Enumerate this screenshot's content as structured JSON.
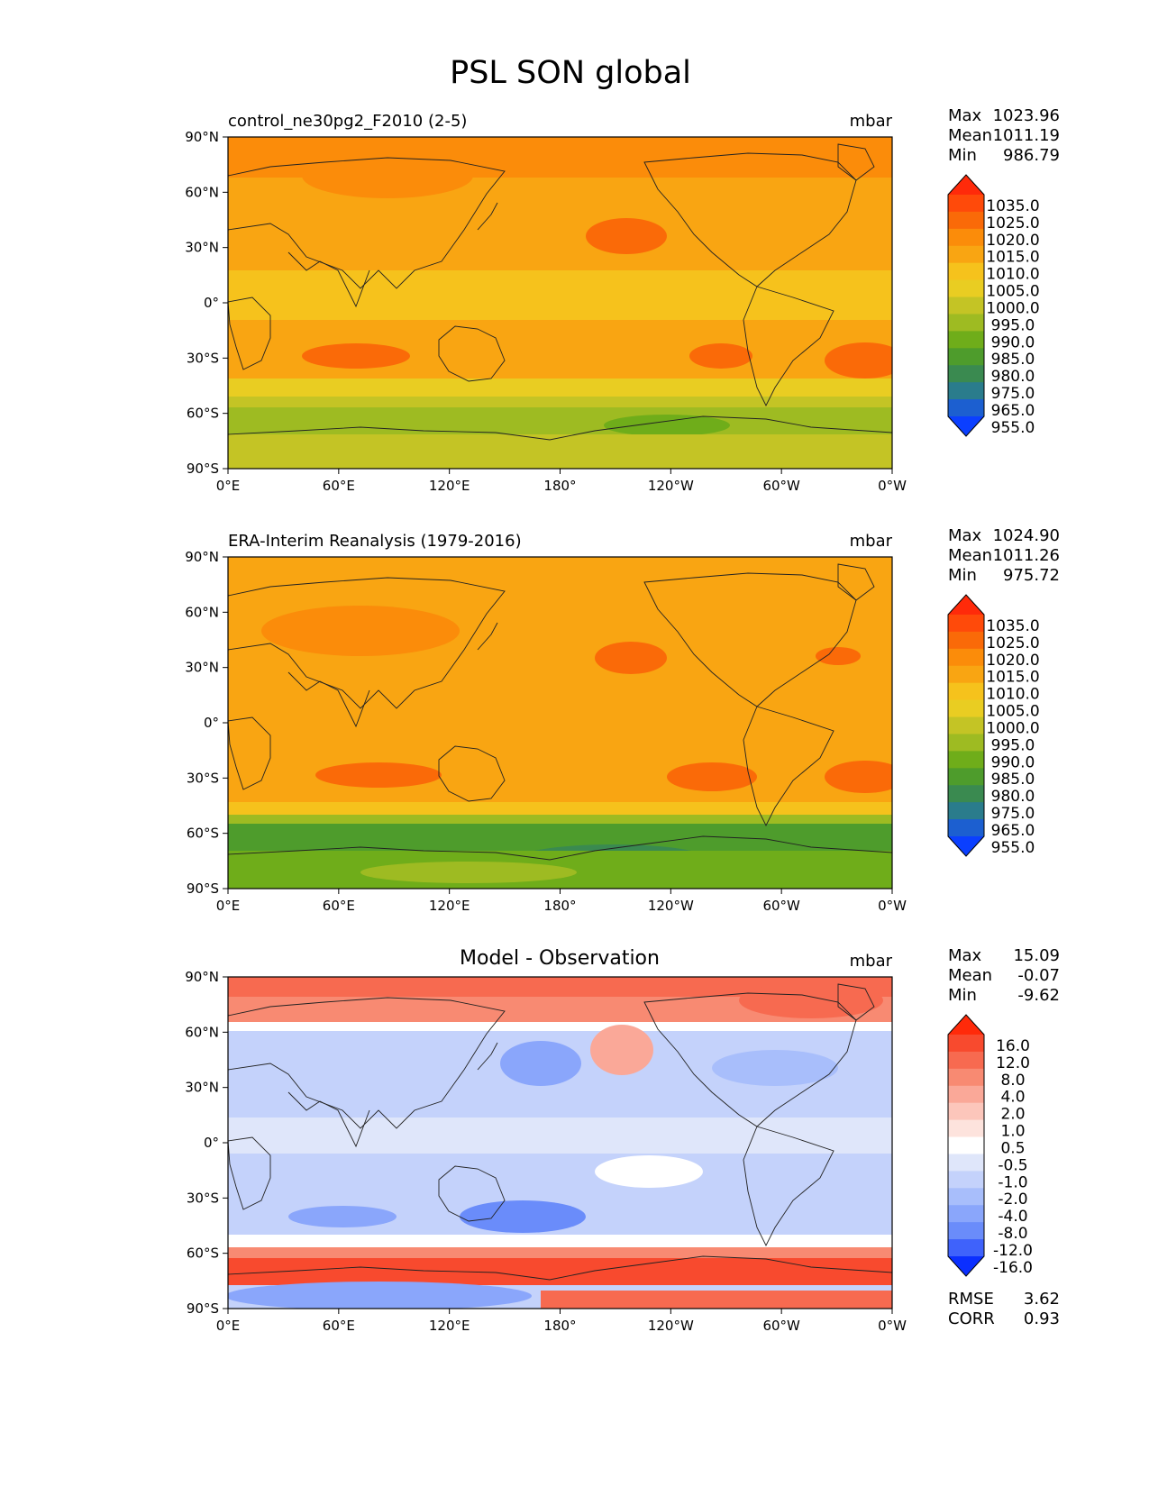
{
  "figure_title": "PSL SON global",
  "chart_data": [
    {
      "type": "heatmap",
      "map_type": "filled-contour world map (PlateCarree, central longitude 180)",
      "title_left": "control_ne30pg2_F2010 (2-5)",
      "title_center": "",
      "units": "mbar",
      "x_ticks": [
        "0°E",
        "60°E",
        "120°E",
        "180°",
        "120°W",
        "60°W",
        "0°W"
      ],
      "y_ticks": [
        "90°N",
        "60°N",
        "30°N",
        "0°",
        "30°S",
        "60°S",
        "90°S"
      ],
      "lon_range": [
        0,
        360
      ],
      "lat_range": [
        -90,
        90
      ],
      "stats": [
        {
          "label": "Max",
          "value": "1023.96"
        },
        {
          "label": "Mean",
          "value": "1011.19"
        },
        {
          "label": "Min",
          "value": "986.79"
        }
      ],
      "colorbar": {
        "levels": [
          "1035.0",
          "1025.0",
          "1020.0",
          "1015.0",
          "1010.0",
          "1005.0",
          "1000.0",
          "995.0",
          "990.0",
          "985.0",
          "980.0",
          "975.0",
          "965.0",
          "955.0"
        ],
        "colors": [
          "#ff2a0a",
          "#ff4a0a",
          "#fa6a08",
          "#fb8c0a",
          "#f9a512",
          "#f6c21c",
          "#e9cd22",
          "#c4c425",
          "#9ebb22",
          "#6fad1a",
          "#4e9c2c",
          "#3a8a50",
          "#2a7c8c",
          "#1c5fd0",
          "#0b3fff"
        ]
      },
      "field": "sea level pressure, control model"
    },
    {
      "type": "heatmap",
      "map_type": "filled-contour world map (PlateCarree, central longitude 180)",
      "title_left": "ERA-Interim Reanalysis (1979-2016)",
      "title_center": "",
      "units": "mbar",
      "x_ticks": [
        "0°E",
        "60°E",
        "120°E",
        "180°",
        "120°W",
        "60°W",
        "0°W"
      ],
      "y_ticks": [
        "90°N",
        "60°N",
        "30°N",
        "0°",
        "30°S",
        "60°S",
        "90°S"
      ],
      "lon_range": [
        0,
        360
      ],
      "lat_range": [
        -90,
        90
      ],
      "stats": [
        {
          "label": "Max",
          "value": "1024.90"
        },
        {
          "label": "Mean",
          "value": "1011.26"
        },
        {
          "label": "Min",
          "value": "975.72"
        }
      ],
      "colorbar": {
        "levels": [
          "1035.0",
          "1025.0",
          "1020.0",
          "1015.0",
          "1010.0",
          "1005.0",
          "1000.0",
          "995.0",
          "990.0",
          "985.0",
          "980.0",
          "975.0",
          "965.0",
          "955.0"
        ],
        "colors": [
          "#ff2a0a",
          "#ff4a0a",
          "#fa6a08",
          "#fb8c0a",
          "#f9a512",
          "#f6c21c",
          "#e9cd22",
          "#c4c425",
          "#9ebb22",
          "#6fad1a",
          "#4e9c2c",
          "#3a8a50",
          "#2a7c8c",
          "#1c5fd0",
          "#0b3fff"
        ]
      },
      "field": "sea level pressure, observation"
    },
    {
      "type": "heatmap",
      "map_type": "filled-contour world map (PlateCarree, central longitude 180)",
      "title_left": "",
      "title_center": "Model - Observation",
      "units": "mbar",
      "x_ticks": [
        "0°E",
        "60°E",
        "120°E",
        "180°",
        "120°W",
        "60°W",
        "0°W"
      ],
      "y_ticks": [
        "90°N",
        "60°N",
        "30°N",
        "0°",
        "30°S",
        "60°S",
        "90°S"
      ],
      "lon_range": [
        0,
        360
      ],
      "lat_range": [
        -90,
        90
      ],
      "stats": [
        {
          "label": "Max",
          "value": "15.09"
        },
        {
          "label": "Mean",
          "value": "-0.07"
        },
        {
          "label": "Min",
          "value": "-9.62"
        }
      ],
      "extra_stats": [
        {
          "label": "RMSE",
          "value": "3.62"
        },
        {
          "label": "CORR",
          "value": "0.93"
        }
      ],
      "colorbar": {
        "levels": [
          "16.0",
          "12.0",
          "8.0",
          "4.0",
          "2.0",
          "1.0",
          "0.5",
          "-0.5",
          "-1.0",
          "-2.0",
          "-4.0",
          "-8.0",
          "-12.0",
          "-16.0"
        ],
        "colors": [
          "#ff2a0a",
          "#f84a2e",
          "#f76a50",
          "#f88a72",
          "#faa898",
          "#fcc6bb",
          "#fde3dd",
          "#ffffff",
          "#dfe6fa",
          "#c4d2fb",
          "#a8befb",
          "#8aa6fb",
          "#6a8cfa",
          "#3f62fb",
          "#0b2fff"
        ]
      },
      "field": "sea level pressure difference"
    }
  ]
}
